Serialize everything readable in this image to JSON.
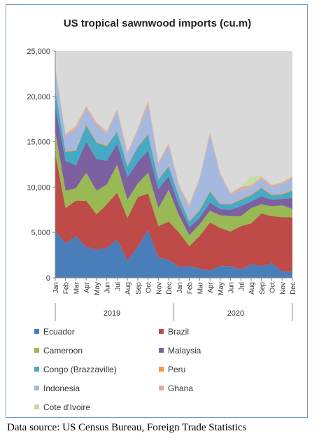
{
  "caption": "Data source: US Census Bureau, Foreign Trade Statistics",
  "chart_data": {
    "type": "area",
    "stacked": true,
    "title": "US tropical sawnwood imports (cu.m)",
    "ylim": [
      0,
      25000
    ],
    "yticks": [
      0,
      5000,
      10000,
      15000,
      20000,
      25000
    ],
    "ytick_labels": [
      "0",
      "5,000",
      "10,000",
      "15,000",
      "20,000",
      "25,000"
    ],
    "categories": [
      "Jan",
      "Feb",
      "Mar",
      "Apr",
      "May",
      "Jun",
      "Jul",
      "Aug",
      "Sep",
      "Oct",
      "Nov",
      "Dec",
      "Jan",
      "Feb",
      "Mar",
      "Apr",
      "May",
      "Jun",
      "Jul",
      "Aug",
      "Sep",
      "Oct",
      "Nov",
      "Dec"
    ],
    "category_labels": [
      "Jan",
      "Feb",
      "Mar",
      "Apr",
      "May",
      "Jun",
      "Jul",
      "Aug",
      "Sep",
      "Oct",
      "Nov",
      "Dec",
      "Jan",
      "Feb",
      "Mar",
      "Apr",
      "May",
      "Jun",
      "Jul",
      "Aug",
      "Sep",
      "Oct",
      "Nov",
      "Dec"
    ],
    "groups": [
      {
        "label": "2019",
        "start": 0,
        "end": 11
      },
      {
        "label": "2020",
        "start": 12,
        "end": 23
      }
    ],
    "grid": false,
    "plot_background": "#d9d9d9",
    "legend_position": "bottom",
    "series": [
      {
        "name": "Ecuador",
        "color": "#4a7ebb",
        "values": [
          5200,
          3800,
          4600,
          3400,
          3100,
          3300,
          4200,
          1900,
          3400,
          5300,
          2200,
          2000,
          1200,
          1300,
          1000,
          800,
          1300,
          1300,
          900,
          1500,
          1300,
          1600,
          700,
          700
        ]
      },
      {
        "name": "Brazil",
        "color": "#be4b48",
        "values": [
          8500,
          3900,
          3900,
          5100,
          3900,
          4800,
          5200,
          4700,
          5500,
          4000,
          3500,
          4200,
          3800,
          2200,
          3600,
          5300,
          4200,
          3800,
          4800,
          4500,
          5800,
          5200,
          6000,
          6000
        ]
      },
      {
        "name": "Cameroon",
        "color": "#98b954",
        "values": [
          2400,
          1900,
          1400,
          3100,
          2600,
          2200,
          3100,
          2000,
          1500,
          2300,
          2000,
          3500,
          1900,
          1200,
          1300,
          1300,
          1400,
          1700,
          1100,
          1700,
          1000,
          1100,
          1300,
          900
        ]
      },
      {
        "name": "Malaysia",
        "color": "#7d60a0",
        "values": [
          2800,
          3300,
          2500,
          3400,
          3500,
          2600,
          2300,
          2500,
          2400,
          2400,
          2100,
          1500,
          1100,
          900,
          700,
          900,
          700,
          700,
          1100,
          700,
          900,
          700,
          700,
          1200
        ]
      },
      {
        "name": "Congo (Brazzaville)",
        "color": "#46aac5",
        "values": [
          1800,
          1000,
          1600,
          1800,
          1800,
          1600,
          1300,
          1200,
          1600,
          1800,
          1000,
          1100,
          900,
          600,
          800,
          1200,
          500,
          600,
          700,
          700,
          900,
          500,
          500,
          800
        ]
      },
      {
        "name": "Peru",
        "color": "#f79646",
        "values": [
          100,
          100,
          100,
          100,
          100,
          100,
          100,
          100,
          100,
          100,
          100,
          100,
          100,
          100,
          100,
          100,
          100,
          100,
          100,
          100,
          100,
          100,
          100,
          100
        ]
      },
      {
        "name": "Indonesia",
        "color": "#a5b9de",
        "values": [
          2100,
          1600,
          2200,
          1700,
          1800,
          1300,
          2100,
          1200,
          1600,
          3200,
          1600,
          2100,
          1000,
          1500,
          3300,
          6100,
          3100,
          900,
          1000,
          800,
          900,
          800,
          1000,
          1200
        ]
      },
      {
        "name": "Ghana",
        "color": "#e6a6a5",
        "values": [
          300,
          200,
          400,
          300,
          300,
          200,
          300,
          200,
          300,
          400,
          200,
          300,
          200,
          200,
          200,
          300,
          200,
          200,
          300,
          200,
          200,
          200,
          200,
          200
        ]
      },
      {
        "name": "Cote d'Ivoire",
        "color": "#c4dca5",
        "values": [
          100,
          100,
          200,
          100,
          100,
          100,
          100,
          100,
          100,
          200,
          100,
          100,
          100,
          100,
          100,
          100,
          100,
          100,
          100,
          1000,
          100,
          100,
          100,
          100
        ]
      }
    ]
  }
}
